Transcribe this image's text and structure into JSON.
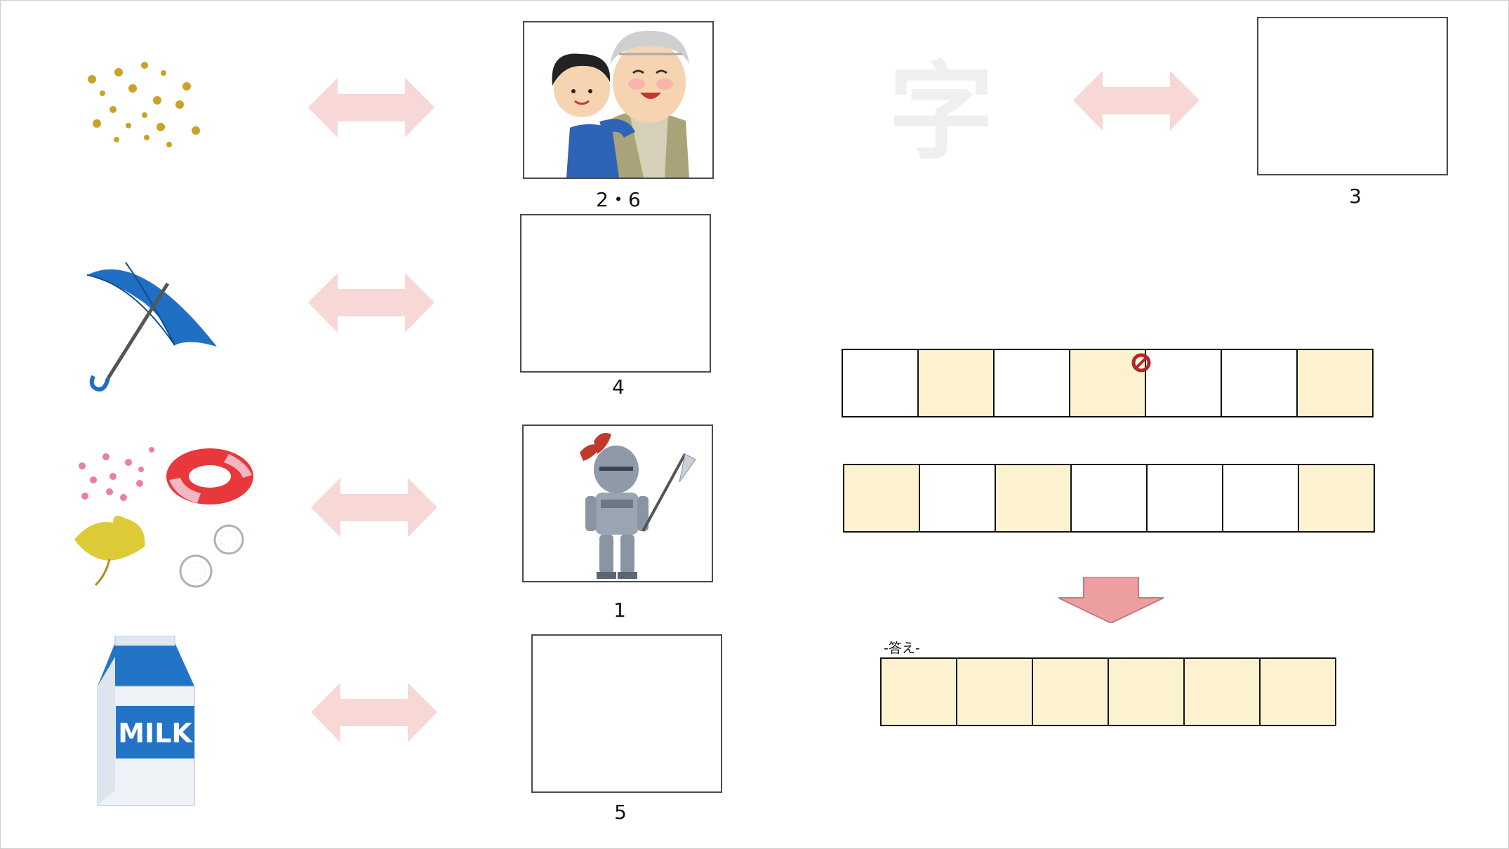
{
  "frame_captions": [
    "2・6",
    "4",
    "1",
    "5",
    "3"
  ],
  "watermark_char": "字",
  "answer_label": "-答え-",
  "puzzle_row1": [
    "white",
    "yellow",
    "white",
    "yellow",
    "white",
    "white",
    "yellow"
  ],
  "puzzle_row2": [
    "yellow",
    "white",
    "yellow",
    "white",
    "white",
    "white",
    "yellow"
  ],
  "answer_row": [
    "yellow",
    "yellow",
    "yellow",
    "yellow",
    "yellow",
    "yellow"
  ],
  "milk_text": "MILK",
  "colors": {
    "arrow_pink": "#f8d7d7",
    "cell_yellow": "#fdf2d0",
    "down_arrow": "#ec9ea0"
  }
}
